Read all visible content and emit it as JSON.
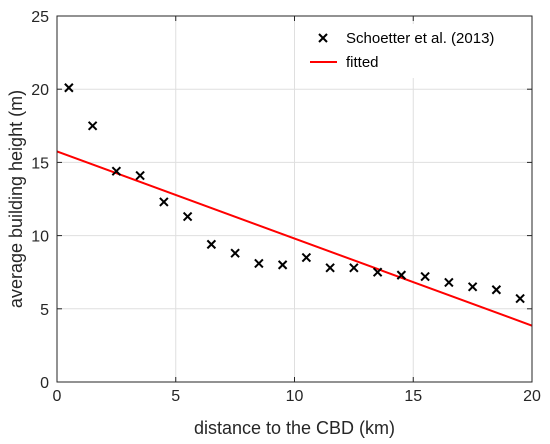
{
  "chart_data": {
    "type": "scatter",
    "xlabel": "distance to the CBD (km)",
    "ylabel": "average building height (m)",
    "xlim": [
      0,
      20
    ],
    "ylim": [
      0,
      25
    ],
    "xticks": [
      0,
      5,
      10,
      15,
      20
    ],
    "yticks": [
      0,
      5,
      10,
      15,
      20,
      25
    ],
    "grid": true,
    "legend_position": "top-right",
    "series": [
      {
        "name": "Schoetter et al. (2013)",
        "marker": "x",
        "color": "#000000",
        "x": [
          0.5,
          1.5,
          2.5,
          3.5,
          4.5,
          5.5,
          6.5,
          7.5,
          8.5,
          9.5,
          10.5,
          11.5,
          12.5,
          13.5,
          14.5,
          15.5,
          16.5,
          17.5,
          18.5,
          19.5
        ],
        "y": [
          20.1,
          17.5,
          14.4,
          14.1,
          12.3,
          11.3,
          9.4,
          8.8,
          8.1,
          8.0,
          8.5,
          7.8,
          7.8,
          7.5,
          7.3,
          7.2,
          6.8,
          6.5,
          6.3,
          5.7
        ]
      },
      {
        "name": "fitted",
        "marker": "line",
        "color": "#ff0000",
        "x": [
          0,
          20
        ],
        "y": [
          15.75,
          3.85
        ]
      }
    ]
  }
}
